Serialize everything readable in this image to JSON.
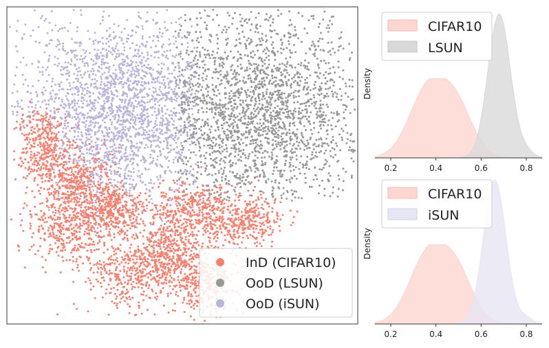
{
  "colors": {
    "ind": "#f8806e",
    "lsun": "#999999",
    "isun": "#b9b4dc",
    "ind_fill": "#fcd6d0",
    "lsun_fill": "#d9d9d9",
    "isun_fill": "#e6e5f3"
  },
  "chart_data": [
    {
      "type": "scatter",
      "title": "",
      "xlabel": "",
      "ylabel": "",
      "legend_placement": "lower-right",
      "series": [
        {
          "name": "InD (CIFAR10)",
          "color_key": "ind"
        },
        {
          "name": "OoD (LSUN)",
          "color_key": "lsun"
        },
        {
          "name": "OoD (iSUN)",
          "color_key": "isun"
        }
      ]
    },
    {
      "type": "area",
      "ylabel": "Density",
      "xlabel": "",
      "xlim": [
        0.13,
        0.87
      ],
      "xticks": [
        "0.2",
        "0.4",
        "0.6",
        "0.8"
      ],
      "legend_placement": "top-left",
      "series": [
        {
          "name": "CIFAR10",
          "color_key": "ind_fill",
          "peak": 0.37,
          "spread": 0.085,
          "height": 0.55
        },
        {
          "name": "LSUN",
          "color_key": "lsun_fill",
          "peak": 0.68,
          "spread": 0.05,
          "height": 1.0
        }
      ]
    },
    {
      "type": "area",
      "ylabel": "Density",
      "xlabel": "",
      "xlim": [
        0.13,
        0.87
      ],
      "xticks": [
        "0.2",
        "0.4",
        "0.6",
        "0.8"
      ],
      "legend_placement": "top-left",
      "series": [
        {
          "name": "CIFAR10",
          "color_key": "ind_fill",
          "peak": 0.37,
          "spread": 0.085,
          "height": 0.55
        },
        {
          "name": "iSUN",
          "color_key": "isun_fill",
          "peak": 0.66,
          "spread": 0.05,
          "height": 1.0
        }
      ]
    }
  ]
}
